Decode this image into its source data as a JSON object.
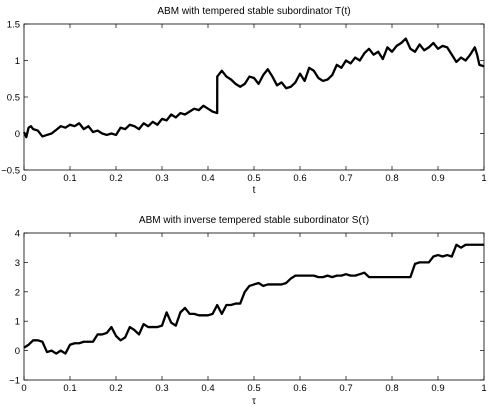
{
  "chart_data": [
    {
      "type": "line",
      "title": "ABM with tempered stable subordinator T(t)",
      "xlabel": "t",
      "ylabel": "",
      "xlim": [
        0,
        1
      ],
      "ylim": [
        -0.5,
        1.5
      ],
      "xticks": [
        0,
        0.1,
        0.2,
        0.3,
        0.4,
        0.5,
        0.6,
        0.7,
        0.8,
        0.9,
        1
      ],
      "yticks": [
        -0.5,
        0,
        0.5,
        1,
        1.5
      ],
      "xtick_labels": [
        "0",
        "0.1",
        "0.2",
        "0.3",
        "0.4",
        "0.5",
        "0.6",
        "0.7",
        "0.8",
        "0.9",
        "1"
      ],
      "ytick_labels": [
        "−0.5",
        "0",
        "0.5",
        "1",
        "1.5"
      ],
      "grid": false,
      "series": [
        {
          "x": [
            0,
            0.005,
            0.01,
            0.015,
            0.02,
            0.03,
            0.04,
            0.05,
            0.06,
            0.07,
            0.08,
            0.09,
            0.1,
            0.11,
            0.12,
            0.13,
            0.14,
            0.15,
            0.16,
            0.17,
            0.18,
            0.19,
            0.2,
            0.21,
            0.22,
            0.23,
            0.24,
            0.25,
            0.26,
            0.27,
            0.28,
            0.29,
            0.3,
            0.31,
            0.32,
            0.33,
            0.34,
            0.35,
            0.36,
            0.37,
            0.38,
            0.39,
            0.4,
            0.41,
            0.42,
            0.4201,
            0.43,
            0.44,
            0.45,
            0.46,
            0.47,
            0.48,
            0.49,
            0.5,
            0.51,
            0.52,
            0.53,
            0.54,
            0.55,
            0.56,
            0.57,
            0.58,
            0.59,
            0.6,
            0.61,
            0.62,
            0.63,
            0.64,
            0.65,
            0.66,
            0.67,
            0.68,
            0.69,
            0.7,
            0.71,
            0.72,
            0.73,
            0.74,
            0.75,
            0.76,
            0.77,
            0.78,
            0.79,
            0.8,
            0.81,
            0.82,
            0.83,
            0.84,
            0.85,
            0.86,
            0.87,
            0.88,
            0.89,
            0.9,
            0.91,
            0.92,
            0.93,
            0.94,
            0.95,
            0.96,
            0.97,
            0.98,
            0.985,
            0.99,
            1.0
          ],
          "y": [
            0.02,
            -0.05,
            0.08,
            0.1,
            0.06,
            0.04,
            -0.04,
            -0.02,
            0.0,
            0.05,
            0.1,
            0.08,
            0.12,
            0.1,
            0.14,
            0.06,
            0.1,
            0.02,
            0.04,
            0.0,
            -0.02,
            0.0,
            -0.02,
            0.08,
            0.06,
            0.12,
            0.1,
            0.06,
            0.14,
            0.1,
            0.16,
            0.12,
            0.2,
            0.18,
            0.26,
            0.22,
            0.28,
            0.26,
            0.3,
            0.34,
            0.32,
            0.38,
            0.34,
            0.3,
            0.28,
            0.78,
            0.86,
            0.78,
            0.74,
            0.68,
            0.64,
            0.68,
            0.78,
            0.76,
            0.68,
            0.8,
            0.88,
            0.78,
            0.66,
            0.7,
            0.62,
            0.64,
            0.7,
            0.82,
            0.72,
            0.9,
            0.86,
            0.76,
            0.72,
            0.74,
            0.8,
            0.94,
            0.9,
            1.0,
            0.96,
            1.04,
            1.0,
            1.1,
            1.16,
            1.08,
            1.12,
            1.02,
            1.18,
            1.12,
            1.2,
            1.24,
            1.3,
            1.16,
            1.12,
            1.22,
            1.14,
            1.18,
            1.24,
            1.16,
            1.2,
            1.18,
            1.08,
            0.98,
            1.04,
            1.0,
            1.08,
            1.18,
            1.08,
            0.94,
            0.92
          ]
        }
      ]
    },
    {
      "type": "line",
      "title": "ABM with inverse tempered stable subordinator S(τ)",
      "xlabel": "τ",
      "ylabel": "",
      "xlim": [
        0,
        1
      ],
      "ylim": [
        -1,
        4
      ],
      "xticks": [
        0,
        0.1,
        0.2,
        0.3,
        0.4,
        0.5,
        0.6,
        0.7,
        0.8,
        0.9,
        1
      ],
      "yticks": [
        -1,
        0,
        1,
        2,
        3,
        4
      ],
      "xtick_labels": [
        "0",
        "0.1",
        "0.2",
        "0.3",
        "0.4",
        "0.5",
        "0.6",
        "0.7",
        "0.8",
        "0.9",
        "1"
      ],
      "ytick_labels": [
        "−1",
        "0",
        "1",
        "2",
        "3",
        "4"
      ],
      "grid": false,
      "series": [
        {
          "x": [
            0,
            0.01,
            0.02,
            0.03,
            0.04,
            0.05,
            0.06,
            0.07,
            0.08,
            0.09,
            0.1,
            0.11,
            0.12,
            0.13,
            0.14,
            0.15,
            0.16,
            0.17,
            0.18,
            0.19,
            0.2,
            0.21,
            0.22,
            0.23,
            0.24,
            0.25,
            0.26,
            0.27,
            0.28,
            0.29,
            0.3,
            0.31,
            0.32,
            0.33,
            0.34,
            0.35,
            0.36,
            0.37,
            0.38,
            0.39,
            0.4,
            0.41,
            0.42,
            0.43,
            0.44,
            0.45,
            0.46,
            0.47,
            0.48,
            0.49,
            0.5,
            0.51,
            0.52,
            0.53,
            0.54,
            0.55,
            0.56,
            0.57,
            0.58,
            0.59,
            0.6,
            0.61,
            0.62,
            0.63,
            0.64,
            0.65,
            0.66,
            0.67,
            0.68,
            0.69,
            0.7,
            0.71,
            0.72,
            0.73,
            0.74,
            0.75,
            0.76,
            0.77,
            0.78,
            0.79,
            0.8,
            0.81,
            0.82,
            0.83,
            0.84,
            0.85,
            0.86,
            0.87,
            0.88,
            0.89,
            0.9,
            0.91,
            0.92,
            0.93,
            0.94,
            0.95,
            0.96,
            0.97,
            0.98,
            0.99,
            1.0
          ],
          "y": [
            0.1,
            0.2,
            0.35,
            0.35,
            0.3,
            -0.05,
            0.0,
            -0.1,
            0.0,
            -0.1,
            0.2,
            0.25,
            0.25,
            0.3,
            0.3,
            0.3,
            0.55,
            0.55,
            0.6,
            0.8,
            0.5,
            0.35,
            0.45,
            0.8,
            0.7,
            0.55,
            0.9,
            0.8,
            0.8,
            0.8,
            0.85,
            1.3,
            0.95,
            0.85,
            1.3,
            1.45,
            1.25,
            1.25,
            1.2,
            1.2,
            1.2,
            1.25,
            1.55,
            1.25,
            1.55,
            1.55,
            1.6,
            1.6,
            2.0,
            2.2,
            2.25,
            2.3,
            2.2,
            2.25,
            2.25,
            2.25,
            2.25,
            2.3,
            2.45,
            2.55,
            2.55,
            2.55,
            2.55,
            2.55,
            2.5,
            2.5,
            2.55,
            2.5,
            2.55,
            2.55,
            2.6,
            2.55,
            2.55,
            2.6,
            2.65,
            2.5,
            2.5,
            2.5,
            2.5,
            2.5,
            2.5,
            2.5,
            2.5,
            2.5,
            2.5,
            2.95,
            3.0,
            3.0,
            3.0,
            3.2,
            3.25,
            3.2,
            3.25,
            3.2,
            3.6,
            3.5,
            3.6,
            3.6,
            3.6,
            3.6,
            3.6
          ]
        }
      ]
    }
  ]
}
